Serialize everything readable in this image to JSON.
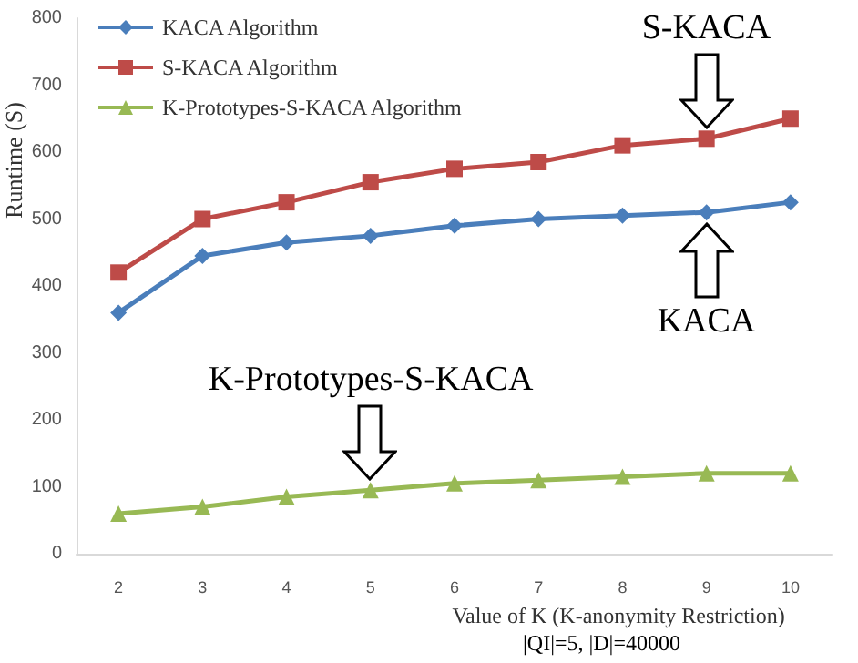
{
  "chart_data": {
    "type": "line",
    "categories": [
      "2",
      "3",
      "4",
      "5",
      "6",
      "7",
      "8",
      "9",
      "10"
    ],
    "series": [
      {
        "name": "KACA Algorithm",
        "color": "#4a7ebb",
        "marker": "diamond",
        "values": [
          360,
          445,
          465,
          475,
          490,
          500,
          505,
          510,
          525
        ]
      },
      {
        "name": "S-KACA Algorithm",
        "color": "#be4b48",
        "marker": "square",
        "values": [
          420,
          500,
          525,
          555,
          575,
          585,
          610,
          620,
          650
        ]
      },
      {
        "name": "K-Prototypes-S-KACA Algorithm",
        "color": "#98b954",
        "marker": "triangle",
        "values": [
          60,
          70,
          85,
          95,
          105,
          110,
          115,
          120,
          120
        ]
      }
    ],
    "ylim": [
      0,
      800
    ],
    "yticks": [
      0,
      100,
      200,
      300,
      400,
      500,
      600,
      700,
      800
    ],
    "xlabel": "Value of K (K-anonymity Restriction)",
    "ylabel": "Runtime (S)",
    "legend": "top left",
    "grid": false,
    "annotations": [
      {
        "text": "S-KACA",
        "x": "9",
        "y": 620
      },
      {
        "text": "KACA",
        "x": "9",
        "y": 510
      },
      {
        "text": "K-Prototypes-S-KACA",
        "x": "5",
        "y": 95
      },
      "|QI|=5, |D|=40000"
    ]
  }
}
